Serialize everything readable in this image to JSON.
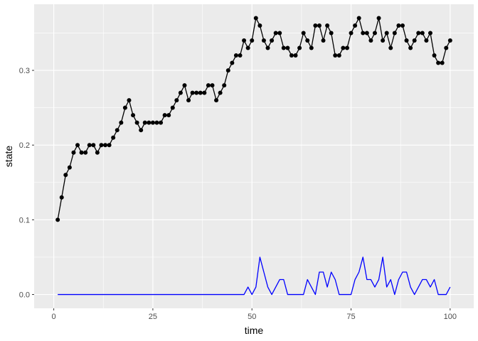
{
  "chart_data": {
    "type": "line",
    "xlabel": "time",
    "ylabel": "state",
    "xlim": [
      -4.95,
      105.95
    ],
    "ylim": [
      -0.0185,
      0.3885
    ],
    "x_ticks": [
      0,
      25,
      50,
      75,
      100
    ],
    "x_tick_labels": [
      "0",
      "25",
      "50",
      "75",
      "100"
    ],
    "y_ticks": [
      0.0,
      0.1,
      0.2,
      0.3
    ],
    "y_tick_labels": [
      "0.0",
      "0.1",
      "0.2",
      "0.3"
    ],
    "grid": true,
    "legend": "none",
    "colors": {
      "panel": "#ebebeb",
      "grid": "#ffffff",
      "state_series": "#000000",
      "secondary_series": "#0000ff"
    },
    "x": [
      1,
      2,
      3,
      4,
      5,
      6,
      7,
      8,
      9,
      10,
      11,
      12,
      13,
      14,
      15,
      16,
      17,
      18,
      19,
      20,
      21,
      22,
      23,
      24,
      25,
      26,
      27,
      28,
      29,
      30,
      31,
      32,
      33,
      34,
      35,
      36,
      37,
      38,
      39,
      40,
      41,
      42,
      43,
      44,
      45,
      46,
      47,
      48,
      49,
      50,
      51,
      52,
      53,
      54,
      55,
      56,
      57,
      58,
      59,
      60,
      61,
      62,
      63,
      64,
      65,
      66,
      67,
      68,
      69,
      70,
      71,
      72,
      73,
      74,
      75,
      76,
      77,
      78,
      79,
      80,
      81,
      82,
      83,
      84,
      85,
      86,
      87,
      88,
      89,
      90,
      91,
      92,
      93,
      94,
      95,
      96,
      97,
      98,
      99,
      100
    ],
    "series": [
      {
        "style": "line+points",
        "color": "#000000",
        "values": [
          0.1,
          0.13,
          0.16,
          0.17,
          0.19,
          0.2,
          0.19,
          0.19,
          0.2,
          0.2,
          0.19,
          0.2,
          0.2,
          0.2,
          0.21,
          0.22,
          0.23,
          0.25,
          0.26,
          0.24,
          0.23,
          0.22,
          0.23,
          0.23,
          0.23,
          0.23,
          0.23,
          0.24,
          0.24,
          0.25,
          0.26,
          0.27,
          0.28,
          0.26,
          0.27,
          0.27,
          0.27,
          0.27,
          0.28,
          0.28,
          0.26,
          0.27,
          0.28,
          0.3,
          0.31,
          0.32,
          0.32,
          0.34,
          0.33,
          0.34,
          0.37,
          0.36,
          0.34,
          0.33,
          0.34,
          0.35,
          0.35,
          0.33,
          0.33,
          0.32,
          0.32,
          0.33,
          0.35,
          0.34,
          0.33,
          0.36,
          0.36,
          0.34,
          0.36,
          0.35,
          0.32,
          0.32,
          0.33,
          0.33,
          0.35,
          0.36,
          0.37,
          0.35,
          0.35,
          0.34,
          0.35,
          0.37,
          0.34,
          0.35,
          0.33,
          0.35,
          0.36,
          0.36,
          0.34,
          0.33,
          0.34,
          0.35,
          0.35,
          0.34,
          0.35,
          0.32,
          0.31,
          0.31,
          0.33,
          0.34
        ]
      },
      {
        "style": "line",
        "color": "#0000ff",
        "values": [
          0,
          0,
          0,
          0,
          0,
          0,
          0,
          0,
          0,
          0,
          0,
          0,
          0,
          0,
          0,
          0,
          0,
          0,
          0,
          0,
          0,
          0,
          0,
          0,
          0,
          0,
          0,
          0,
          0,
          0,
          0,
          0,
          0,
          0,
          0,
          0,
          0,
          0,
          0,
          0,
          0,
          0,
          0,
          0,
          0,
          0,
          0,
          0,
          0.01,
          0,
          0.01,
          0.05,
          0.03,
          0.01,
          0,
          0.01,
          0.02,
          0.02,
          0,
          0,
          0,
          0,
          0,
          0.02,
          0.01,
          0,
          0.03,
          0.03,
          0.01,
          0.03,
          0.02,
          0,
          0,
          0,
          0,
          0.02,
          0.03,
          0.05,
          0.02,
          0.02,
          0.01,
          0.02,
          0.05,
          0.01,
          0.02,
          0,
          0.02,
          0.03,
          0.03,
          0.01,
          0,
          0.01,
          0.02,
          0.02,
          0.01,
          0.02,
          0,
          0,
          0,
          0.01
        ]
      }
    ]
  }
}
